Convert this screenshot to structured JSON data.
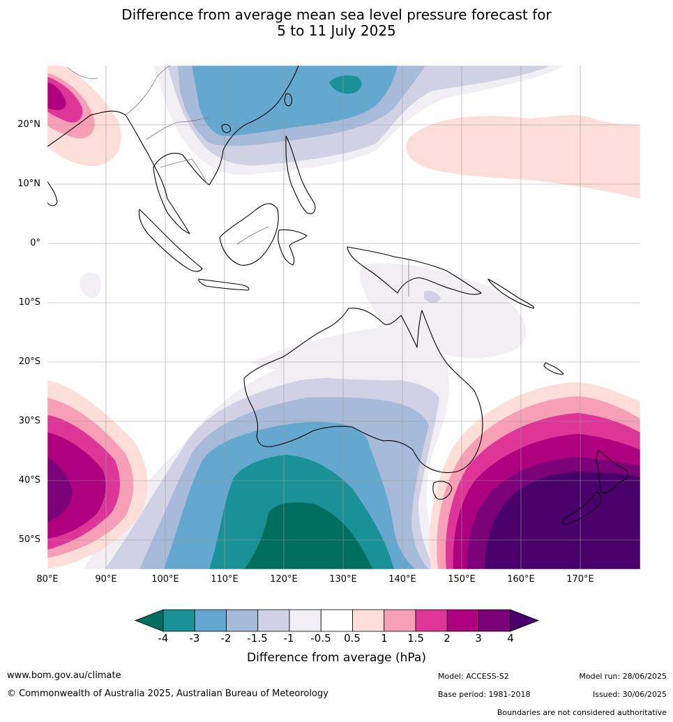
{
  "title_line1": "Difference from average mean sea level pressure forecast for",
  "title_line2": "5 to 11 July 2025",
  "lat_labels": [
    "20°N",
    "10°N",
    "0°",
    "10°S",
    "20°S",
    "30°S",
    "40°S",
    "50°S"
  ],
  "lon_labels": [
    "80°E",
    "90°E",
    "100°E",
    "110°E",
    "120°E",
    "130°E",
    "140°E",
    "150°E",
    "160°E",
    "170°E"
  ],
  "colorbar": {
    "title": "Difference from average (hPa)",
    "tick_labels": [
      "-4",
      "-3",
      "-2",
      "-1.5",
      "-1",
      "-0.5",
      "0.5",
      "1",
      "1.5",
      "2",
      "3",
      "4"
    ],
    "colors": [
      "#006e5e",
      "#1a9196",
      "#64a8d0",
      "#a7bad9",
      "#d1d1e6",
      "#f1eef4",
      "#ffffff",
      "#fdded9",
      "#f89fb8",
      "#dd3598",
      "#ad007e",
      "#7a0177",
      "#49006a"
    ]
  },
  "footer": {
    "website": "www.bom.gov.au/climate",
    "copyright": "© Commonwealth of Australia 2025, Australian Bureau of Meteorology",
    "model": "Model: ACCESS-S2",
    "base_period": "Base period: 1981-2018",
    "model_run": "Model run: 28/06/2025",
    "issued": "Issued: 30/06/2025",
    "disclaimer": "Boundaries are not considered authoritative"
  }
}
